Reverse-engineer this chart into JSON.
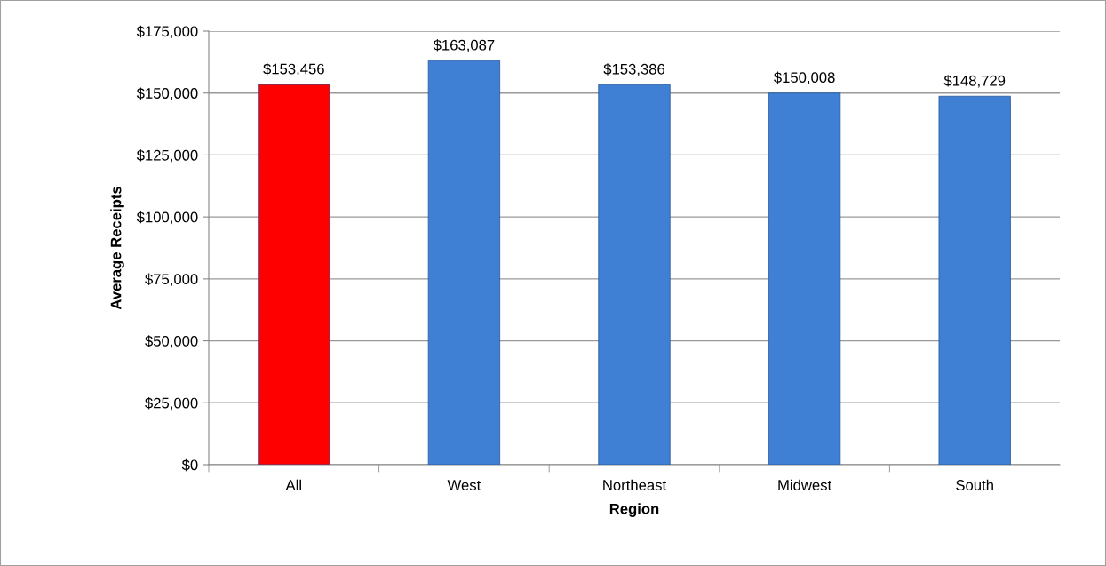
{
  "chart_data": {
    "type": "bar",
    "xlabel": "Region",
    "ylabel": "Average Receipts",
    "categories": [
      "All",
      "West",
      "Northeast",
      "Midwest",
      "South"
    ],
    "values": [
      153456,
      163087,
      153386,
      150008,
      148729
    ],
    "colors": [
      "#ff0000",
      "#3f80d4",
      "#3f80d4",
      "#3f80d4",
      "#3f80d4"
    ],
    "value_labels": [
      "$153,456",
      "$163,087",
      "$153,386",
      "$150,008",
      "$148,729"
    ],
    "ylim": [
      0,
      175000
    ],
    "yticks": [
      {
        "value": 0,
        "label": "$0"
      },
      {
        "value": 25000,
        "label": "$25,000"
      },
      {
        "value": 50000,
        "label": "$50,000"
      },
      {
        "value": 75000,
        "label": "$75,000"
      },
      {
        "value": 100000,
        "label": "$100,000"
      },
      {
        "value": 125000,
        "label": "$125,000"
      },
      {
        "value": 150000,
        "label": "$150,000"
      },
      {
        "value": 175000,
        "label": "$175,000"
      }
    ],
    "grid": "y",
    "legend": false
  }
}
